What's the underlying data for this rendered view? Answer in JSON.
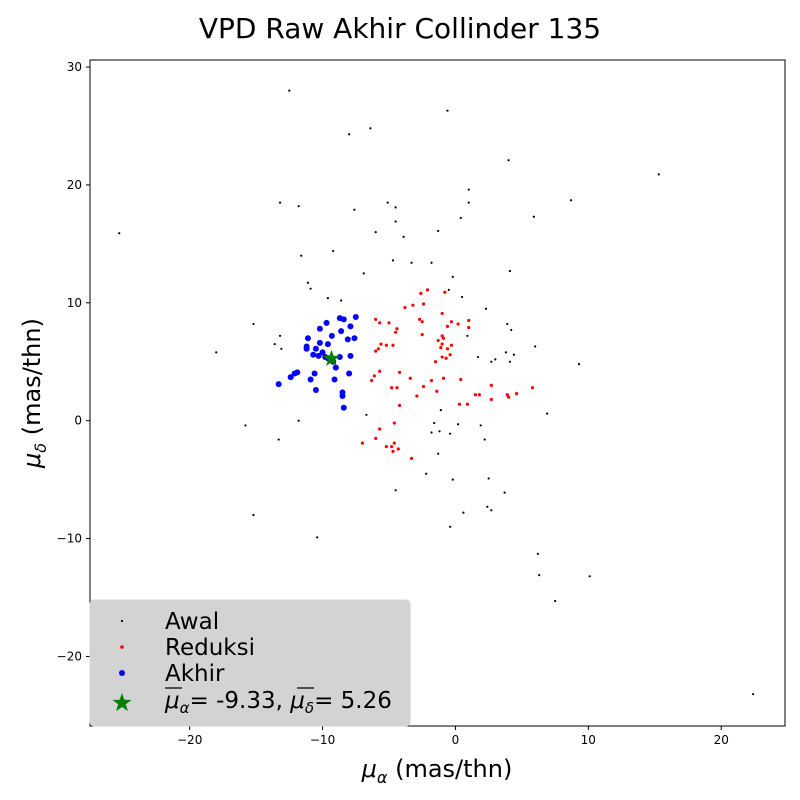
{
  "chart_data": {
    "type": "scatter",
    "title": "VPD Raw Akhir Collinder 135",
    "xlabel": "μα (mas/thn)",
    "ylabel": "μδ (mas/thn)",
    "xlim": [
      -27.5,
      24.8
    ],
    "ylim": [
      -25.9,
      30.6
    ],
    "xticks": [
      -20,
      -10,
      0,
      10,
      20
    ],
    "yticks": [
      -20,
      -10,
      0,
      10,
      20,
      30
    ],
    "xtick_labels": [
      "−20",
      "−10",
      "0",
      "10",
      "20"
    ],
    "ytick_labels": [
      "−20",
      "−10",
      "0",
      "10",
      "20",
      "30"
    ],
    "grid": false,
    "legend_position": "lower-left",
    "series": [
      {
        "name": "Awal",
        "marker": "point",
        "color": "#000000",
        "points": [
          [
            -12.5,
            28.0
          ],
          [
            -0.6,
            26.3
          ],
          [
            -6.4,
            24.8
          ],
          [
            -8.0,
            24.3
          ],
          [
            4.0,
            22.1
          ],
          [
            15.3,
            20.9
          ],
          [
            1.0,
            19.6
          ],
          [
            8.7,
            18.7
          ],
          [
            -13.2,
            18.5
          ],
          [
            -5.1,
            18.5
          ],
          [
            1.0,
            18.5
          ],
          [
            -11.8,
            18.2
          ],
          [
            -4.5,
            18.1
          ],
          [
            -7.6,
            17.9
          ],
          [
            0.4,
            17.2
          ],
          [
            5.9,
            17.3
          ],
          [
            -4.5,
            16.9
          ],
          [
            -1.3,
            16.1
          ],
          [
            -6.0,
            16.0
          ],
          [
            -25.3,
            15.9
          ],
          [
            -3.9,
            15.6
          ],
          [
            -9.2,
            14.4
          ],
          [
            -11.6,
            14.0
          ],
          [
            -4.7,
            13.6
          ],
          [
            -3.3,
            13.4
          ],
          [
            -1.8,
            13.4
          ],
          [
            4.1,
            12.7
          ],
          [
            -6.9,
            12.5
          ],
          [
            -0.2,
            12.2
          ],
          [
            -11.1,
            11.7
          ],
          [
            -10.9,
            11.2
          ],
          [
            -0.5,
            11.1
          ],
          [
            0.5,
            10.5
          ],
          [
            -9.6,
            10.4
          ],
          [
            -8.6,
            10.2
          ],
          [
            2.3,
            9.5
          ],
          [
            -15.2,
            8.2
          ],
          [
            3.9,
            8.2
          ],
          [
            4.2,
            7.7
          ],
          [
            -13.2,
            7.2
          ],
          [
            0.9,
            7.2
          ],
          [
            -13.6,
            6.5
          ],
          [
            -13.1,
            6.1
          ],
          [
            6.0,
            6.3
          ],
          [
            -18.0,
            5.8
          ],
          [
            3.8,
            5.8
          ],
          [
            4.4,
            5.6
          ],
          [
            1.7,
            5.4
          ],
          [
            3.0,
            5.2
          ],
          [
            4.1,
            5.0
          ],
          [
            2.7,
            5.0
          ],
          [
            9.3,
            4.8
          ],
          [
            6.9,
            0.6
          ],
          [
            -6.7,
            0.5
          ],
          [
            -1.1,
            0.9
          ],
          [
            -11.8,
            0.0
          ],
          [
            -15.8,
            -0.4
          ],
          [
            -1.6,
            -0.2
          ],
          [
            0.2,
            -0.3
          ],
          [
            1.9,
            -0.4
          ],
          [
            -1.2,
            -0.9
          ],
          [
            -1.8,
            -1.0
          ],
          [
            -0.4,
            -1.1
          ],
          [
            -13.3,
            -1.6
          ],
          [
            2.2,
            -1.6
          ],
          [
            -1.3,
            -2.8
          ],
          [
            -2.2,
            -4.5
          ],
          [
            2.5,
            -4.9
          ],
          [
            -0.2,
            -5.0
          ],
          [
            -4.5,
            -5.9
          ],
          [
            3.7,
            -6.1
          ],
          [
            2.4,
            -7.3
          ],
          [
            2.7,
            -7.6
          ],
          [
            0.6,
            -7.8
          ],
          [
            -15.2,
            -8.0
          ],
          [
            -0.4,
            -9.0
          ],
          [
            -10.4,
            -9.9
          ],
          [
            6.2,
            -11.3
          ],
          [
            6.3,
            -13.1
          ],
          [
            10.1,
            -13.2
          ],
          [
            7.5,
            -15.3
          ],
          [
            22.4,
            -23.2
          ]
        ]
      },
      {
        "name": "Reduksi",
        "marker": "small-dot",
        "color": "#ff0000",
        "points": [
          [
            -2.1,
            11.1
          ],
          [
            -2.6,
            10.8
          ],
          [
            -0.8,
            10.9
          ],
          [
            -3.2,
            9.8
          ],
          [
            -2.4,
            9.9
          ],
          [
            -3.8,
            9.6
          ],
          [
            -1.0,
            9.1
          ],
          [
            -6.0,
            8.6
          ],
          [
            -5.0,
            8.3
          ],
          [
            -2.7,
            8.6
          ],
          [
            -0.3,
            8.4
          ],
          [
            -5.7,
            8.3
          ],
          [
            1.0,
            8.5
          ],
          [
            -2.5,
            8.4
          ],
          [
            0.2,
            8.2
          ],
          [
            -0.6,
            8.0
          ],
          [
            1.0,
            7.9
          ],
          [
            -4.4,
            7.8
          ],
          [
            -4.5,
            7.5
          ],
          [
            -2.5,
            7.3
          ],
          [
            -1.0,
            7.2
          ],
          [
            -0.9,
            7.0
          ],
          [
            -1.3,
            6.8
          ],
          [
            -1.0,
            6.5
          ],
          [
            -0.3,
            6.4
          ],
          [
            -5.6,
            6.5
          ],
          [
            -5.2,
            6.4
          ],
          [
            -4.7,
            6.4
          ],
          [
            -1.1,
            6.2
          ],
          [
            -0.6,
            6.1
          ],
          [
            -5.8,
            6.1
          ],
          [
            -6.0,
            5.9
          ],
          [
            -0.4,
            5.6
          ],
          [
            -1.0,
            5.4
          ],
          [
            -0.7,
            5.3
          ],
          [
            -1.5,
            5.0
          ],
          [
            -5.7,
            4.2
          ],
          [
            -4.2,
            4.1
          ],
          [
            -6.1,
            3.8
          ],
          [
            -3.4,
            3.6
          ],
          [
            -0.9,
            3.6
          ],
          [
            0.4,
            3.5
          ],
          [
            -1.8,
            3.4
          ],
          [
            -6.3,
            3.4
          ],
          [
            -4.4,
            2.8
          ],
          [
            -4.8,
            2.8
          ],
          [
            -2.4,
            2.9
          ],
          [
            2.7,
            3.0
          ],
          [
            5.8,
            2.8
          ],
          [
            -1.4,
            2.5
          ],
          [
            3.9,
            2.2
          ],
          [
            4.6,
            2.3
          ],
          [
            1.5,
            2.2
          ],
          [
            1.8,
            2.2
          ],
          [
            -2.9,
            2.1
          ],
          [
            4.0,
            2.0
          ],
          [
            2.7,
            1.8
          ],
          [
            0.3,
            1.4
          ],
          [
            0.9,
            1.4
          ],
          [
            -4.2,
            1.3
          ],
          [
            -4.6,
            -0.2
          ],
          [
            -5.7,
            -0.7
          ],
          [
            -6.0,
            -1.5
          ],
          [
            -7.0,
            -1.9
          ],
          [
            -4.6,
            -1.9
          ],
          [
            -4.8,
            -2.2
          ],
          [
            -5.2,
            -2.2
          ],
          [
            -4.3,
            -2.4
          ],
          [
            -4.7,
            -2.6
          ],
          [
            -3.3,
            -3.2
          ]
        ]
      },
      {
        "name": "Akhir",
        "marker": "dot",
        "color": "#0000ff",
        "points": [
          [
            -8.7,
            8.7
          ],
          [
            -8.4,
            8.6
          ],
          [
            -7.5,
            8.8
          ],
          [
            -9.7,
            8.3
          ],
          [
            -7.9,
            8.0
          ],
          [
            -10.2,
            7.8
          ],
          [
            -8.6,
            7.6
          ],
          [
            -9.3,
            7.2
          ],
          [
            -11.1,
            7.0
          ],
          [
            -7.6,
            7.0
          ],
          [
            -8.1,
            6.9
          ],
          [
            -10.2,
            6.6
          ],
          [
            -9.6,
            6.5
          ],
          [
            -11.2,
            6.3
          ],
          [
            -10.5,
            6.1
          ],
          [
            -11.2,
            6.1
          ],
          [
            -10.0,
            5.8
          ],
          [
            -10.7,
            5.6
          ],
          [
            -10.3,
            5.5
          ],
          [
            -9.8,
            5.4
          ],
          [
            -9.6,
            5.3
          ],
          [
            -8.7,
            5.4
          ],
          [
            -7.9,
            5.5
          ],
          [
            -9.2,
            5.0
          ],
          [
            -9.0,
            4.5
          ],
          [
            -11.9,
            4.1
          ],
          [
            -12.1,
            4.0
          ],
          [
            -10.6,
            4.0
          ],
          [
            -8.0,
            4.0
          ],
          [
            -12.4,
            3.7
          ],
          [
            -10.9,
            3.5
          ],
          [
            -9.1,
            3.5
          ],
          [
            -13.3,
            3.1
          ],
          [
            -10.5,
            2.6
          ],
          [
            -8.5,
            2.4
          ],
          [
            -8.5,
            2.1
          ],
          [
            -8.4,
            1.1
          ]
        ]
      }
    ],
    "mean": {
      "label": "μα = -9.33, μδ = 5.26",
      "mu_alpha": -9.33,
      "mu_delta": 5.26,
      "marker": "star",
      "color": "#008000"
    }
  }
}
